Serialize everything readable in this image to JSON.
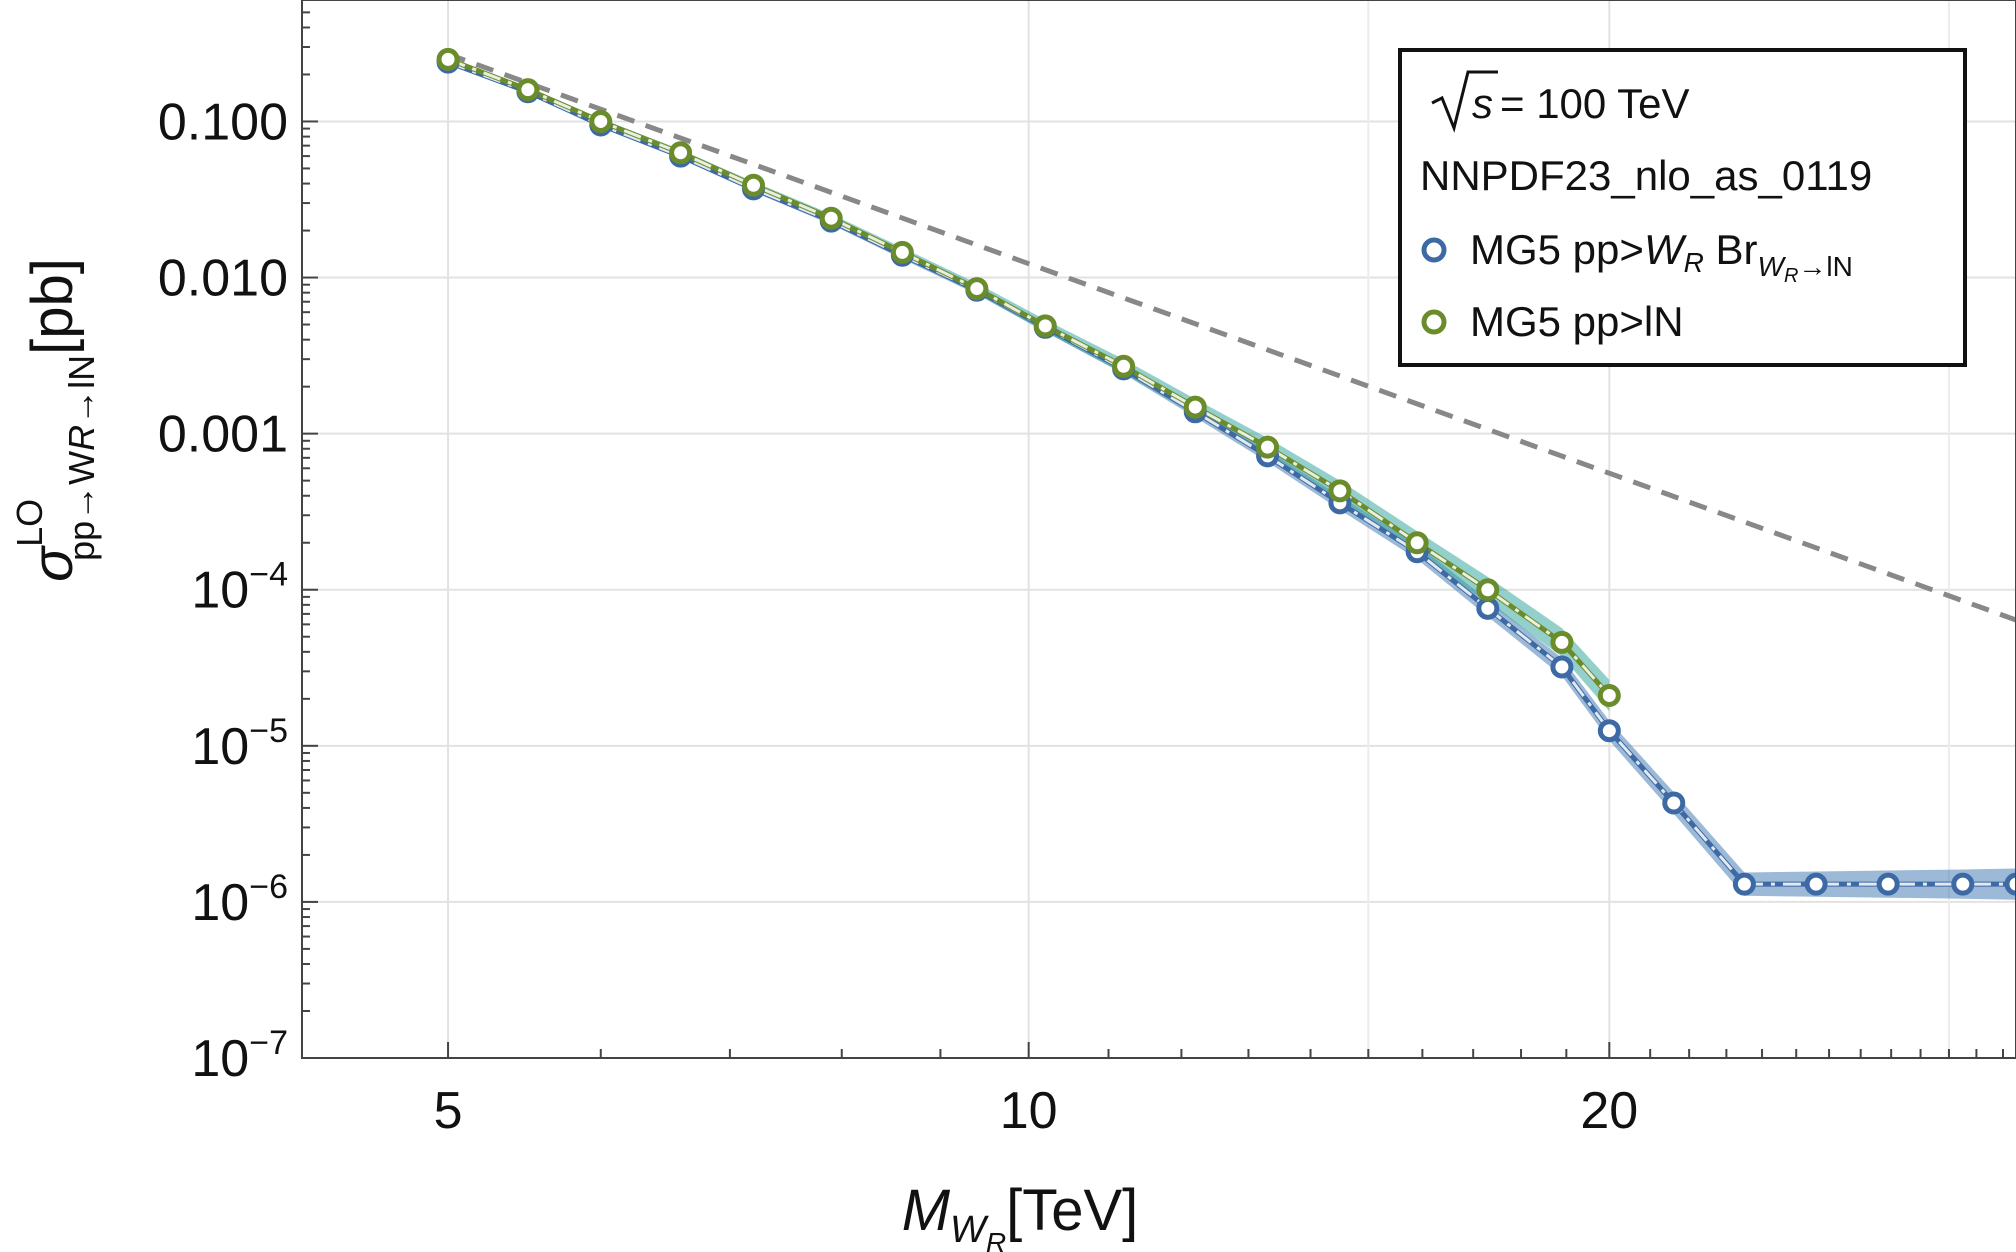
{
  "chart_data": {
    "type": "line",
    "xlabel": {
      "main": "M",
      "sub": "W",
      "subsub": "R",
      "unit": "[TeV]"
    },
    "ylabel": {
      "main": "σ",
      "sup": "LO",
      "sub": "pp→W",
      "subsub": "R",
      "sub2": "→lN",
      "unit": "[pb]"
    },
    "x_scale": "log",
    "y_scale": "log",
    "xlim": [
      4.2,
      32.5
    ],
    "ylim": [
      1e-07,
      0.6
    ],
    "x_ticks": [
      {
        "value": 5,
        "label": "5"
      },
      {
        "value": 10,
        "label": "10"
      },
      {
        "value": 20,
        "label": "20"
      }
    ],
    "y_ticks": [
      {
        "value": 0.1,
        "mantissa": "0.100",
        "exp": ""
      },
      {
        "value": 0.01,
        "mantissa": "0.010",
        "exp": ""
      },
      {
        "value": 0.001,
        "mantissa": "0.001",
        "exp": ""
      },
      {
        "value": 0.0001,
        "mantissa": "10",
        "exp": "−4"
      },
      {
        "value": 1e-05,
        "mantissa": "10",
        "exp": "−5"
      },
      {
        "value": 1e-06,
        "mantissa": "10",
        "exp": "−6"
      },
      {
        "value": 1e-07,
        "mantissa": "10",
        "exp": "−7"
      }
    ],
    "grid": true,
    "legend": {
      "position": "top-right",
      "header_sqrt": "s",
      "header_value": " = 100 TeV",
      "pdf": "NNPDF23_nlo_as_0119",
      "entries": [
        {
          "series": 0,
          "prefix": "MG5 pp>",
          "w": "W",
          "wsub": "R",
          "br": " Br",
          "brsub": "W",
          "brsubsub": "R",
          "brsub2": "→lN"
        },
        {
          "series": 1,
          "text": "MG5 pp>lN"
        }
      ]
    },
    "series": [
      {
        "name": "MG5 pp>W_R Br_{W_R→lN}",
        "color": "#3d6aa4",
        "band_color": "#4a7fb8",
        "x": [
          5,
          5.5,
          6,
          6.6,
          7.2,
          7.9,
          8.6,
          9.4,
          10.2,
          11.2,
          12.2,
          13.3,
          14.5,
          15.9,
          17.3,
          18.9,
          20,
          21.6,
          23.5,
          25.6,
          27.9,
          30.5,
          32.5
        ],
        "values": [
          0.24,
          0.155,
          0.095,
          0.06,
          0.037,
          0.023,
          0.0139,
          0.0083,
          0.0048,
          0.0026,
          0.00138,
          0.00072,
          0.00036,
          0.000175,
          7.6e-05,
          3.2e-05,
          1.25e-05,
          4.3e-06,
          1.3e-06,
          1.3e-06,
          1.3e-06,
          1.3e-06,
          1.3e-06
        ]
      },
      {
        "name": "MG5 pp>lN",
        "color": "#6b8c2a",
        "band_color": "#3ba8a0",
        "x": [
          5,
          5.5,
          6,
          6.6,
          7.2,
          7.9,
          8.6,
          9.4,
          10.2,
          11.2,
          12.2,
          13.3,
          14.5,
          15.9,
          17.3,
          18.9,
          20
        ],
        "values": [
          0.25,
          0.16,
          0.1,
          0.063,
          0.039,
          0.024,
          0.0145,
          0.0085,
          0.0049,
          0.0027,
          0.00148,
          0.00082,
          0.00043,
          0.0002,
          0.0001,
          4.6e-05,
          2.1e-05
        ]
      }
    ],
    "reference_line": {
      "style": "dashed",
      "color": "#888888",
      "x": [
        5,
        32.5
      ],
      "values": [
        0.27,
        6.4e-05
      ]
    }
  }
}
